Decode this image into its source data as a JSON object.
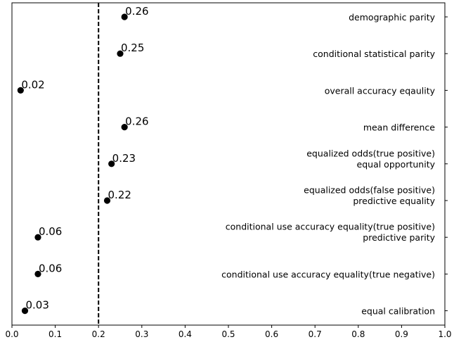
{
  "chart_data": {
    "type": "scatter",
    "title": "",
    "xlabel": "",
    "ylabel": "",
    "xlim": [
      0.0,
      1.0
    ],
    "x_ticks": [
      "0.0",
      "0.1",
      "0.2",
      "0.3",
      "0.4",
      "0.5",
      "0.6",
      "0.7",
      "0.8",
      "0.9",
      "1.0"
    ],
    "reference_line": {
      "x": 0.2,
      "style": "dashed"
    },
    "grid": false,
    "category_label_position": "right",
    "marker_color": "#000000",
    "points": [
      {
        "category": [
          "demographic parity"
        ],
        "value": 0.26,
        "label": "0.26"
      },
      {
        "category": [
          "conditional statistical parity"
        ],
        "value": 0.25,
        "label": "0.25"
      },
      {
        "category": [
          "overall accuracy eqaulity"
        ],
        "value": 0.02,
        "label": "0.02"
      },
      {
        "category": [
          "mean difference"
        ],
        "value": 0.26,
        "label": "0.26"
      },
      {
        "category": [
          "equalized odds(true positive)",
          "equal opportunity"
        ],
        "value": 0.23,
        "label": "0.23"
      },
      {
        "category": [
          "equalized odds(false positive)",
          "predictive equality"
        ],
        "value": 0.22,
        "label": "0.22"
      },
      {
        "category": [
          "conditional use accuracy equality(true positive)",
          "predictive parity"
        ],
        "value": 0.06,
        "label": "0.06"
      },
      {
        "category": [
          "conditional use accuracy equality(true negative)"
        ],
        "value": 0.06,
        "label": "0.06"
      },
      {
        "category": [
          "equal calibration"
        ],
        "value": 0.03,
        "label": "0.03"
      }
    ]
  }
}
